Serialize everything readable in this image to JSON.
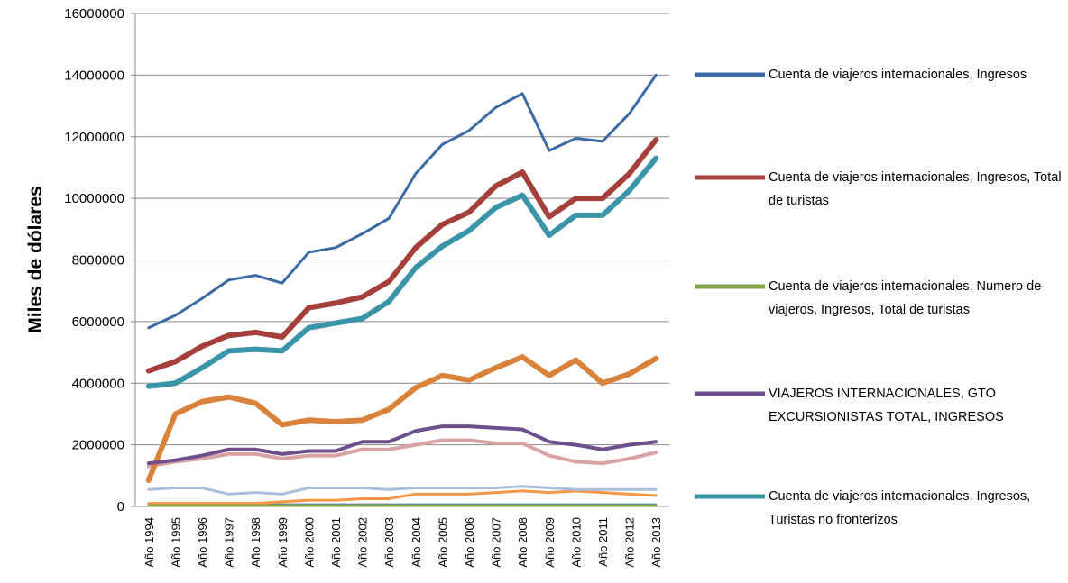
{
  "chart_data": {
    "type": "line",
    "y_label": "Miles de dólares",
    "categories": [
      "Año 1994",
      "Año 1995",
      "Año 1996",
      "Año 1997",
      "Año 1998",
      "Año 1999",
      "Año 2000",
      "Año 2001",
      "Año 2002",
      "Año 2003",
      "Año 2004",
      "Año 2005",
      "Año 2006",
      "Año 2007",
      "Año 2008",
      "Año 2009",
      "Año 2010",
      "Año 2011",
      "Año 2012",
      "Año 2013"
    ],
    "ylim": [
      0,
      16000000
    ],
    "yticks": [
      0,
      2000000,
      4000000,
      6000000,
      8000000,
      10000000,
      12000000,
      14000000,
      16000000
    ],
    "grid": true,
    "legend": "right",
    "series": [
      {
        "name": "Cuenta de viajeros internacionales, Ingresos",
        "color": "#3c6aa4",
        "line_width": 3,
        "values": [
          5800000,
          6200000,
          6750000,
          7350000,
          7500000,
          7250000,
          8250000,
          8400000,
          8850000,
          9350000,
          10800000,
          11750000,
          12200000,
          12950000,
          13400000,
          11550000,
          11950000,
          11850000,
          12750000,
          14000000
        ]
      },
      {
        "name": "Cuenta de viajeros internacionales, Ingresos, Total de turistas",
        "color": "#a53f3c",
        "line_width": 6,
        "values": [
          4400000,
          4700000,
          5200000,
          5550000,
          5650000,
          5500000,
          6450000,
          6600000,
          6800000,
          7300000,
          8400000,
          9150000,
          9550000,
          10400000,
          10850000,
          9400000,
          10000000,
          10000000,
          10800000,
          11900000
        ]
      },
      {
        "name": "Cuenta de viajeros internacionales, Numero de viajeros, Ingresos, Total de turistas",
        "color": "#86a44a",
        "line_width": 3,
        "values": [
          30000,
          30000,
          30000,
          30000,
          30000,
          30000,
          30000,
          30000,
          30000,
          30000,
          30000,
          30000,
          30000,
          30000,
          30000,
          30000,
          30000,
          30000,
          30000,
          30000
        ]
      },
      {
        "name": "VIAJEROS INTERNACIONALES,  GTO EXCURSIONISTAS TOTAL, INGRESOS",
        "color": "#6c4f8c",
        "line_width": 4,
        "values": [
          1400000,
          1500000,
          1650000,
          1850000,
          1850000,
          1700000,
          1800000,
          1800000,
          2100000,
          2100000,
          2450000,
          2600000,
          2600000,
          2550000,
          2500000,
          2100000,
          2000000,
          1850000,
          2000000,
          2100000
        ]
      },
      {
        "name": "Cuenta de viajeros internacionales, Ingresos, Turistas no fronterizos",
        "color": "#3a95a9",
        "line_width": 6,
        "values": [
          3900000,
          4000000,
          4500000,
          5050000,
          5100000,
          5050000,
          5800000,
          5950000,
          6100000,
          6650000,
          7750000,
          8450000,
          8950000,
          9700000,
          10100000,
          8800000,
          9450000,
          9450000,
          10250000,
          11300000
        ]
      },
      {
        "color": "#d9823b",
        "line_width": 6,
        "values": [
          850000,
          3000000,
          3400000,
          3550000,
          3350000,
          2650000,
          2800000,
          2750000,
          2800000,
          3150000,
          3850000,
          4250000,
          4100000,
          4500000,
          4850000,
          4250000,
          4750000,
          4000000,
          4300000,
          4800000
        ]
      },
      {
        "color": "#d8a3a2",
        "line_width": 4,
        "values": [
          1300000,
          1450000,
          1550000,
          1700000,
          1700000,
          1550000,
          1650000,
          1650000,
          1850000,
          1850000,
          2000000,
          2150000,
          2150000,
          2050000,
          2050000,
          1650000,
          1450000,
          1400000,
          1550000,
          1750000
        ]
      },
      {
        "color": "#a9bedb",
        "line_width": 3,
        "values": [
          550000,
          600000,
          600000,
          400000,
          450000,
          400000,
          600000,
          600000,
          600000,
          550000,
          600000,
          600000,
          600000,
          600000,
          650000,
          600000,
          550000,
          550000,
          550000,
          550000
        ]
      },
      {
        "color": "#f79646",
        "line_width": 3,
        "values": [
          100000,
          100000,
          100000,
          100000,
          100000,
          150000,
          200000,
          200000,
          250000,
          250000,
          400000,
          400000,
          400000,
          450000,
          500000,
          450000,
          500000,
          450000,
          400000,
          350000
        ]
      },
      {
        "color": "#4f81bd",
        "line_width": 2,
        "values": [
          70000,
          70000,
          70000,
          70000,
          70000,
          70000,
          70000,
          70000,
          70000,
          70000,
          70000,
          70000,
          70000,
          70000,
          70000,
          70000,
          70000,
          70000,
          70000,
          70000
        ]
      }
    ]
  }
}
